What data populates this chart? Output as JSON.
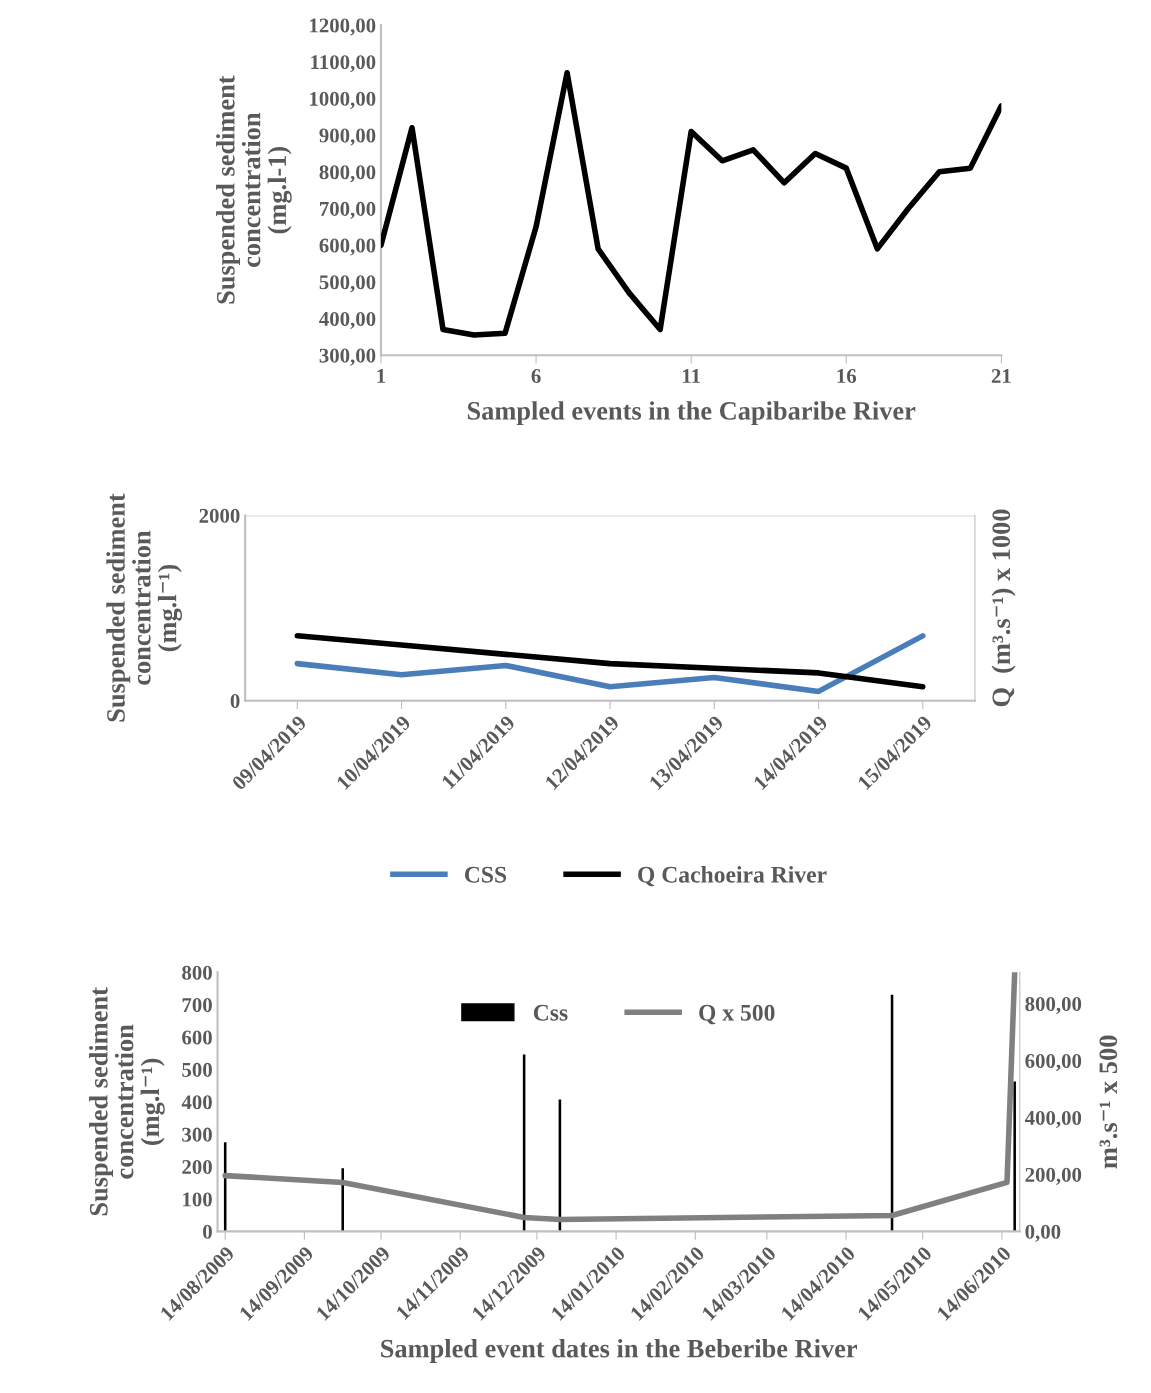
{
  "chart_data": [
    {
      "type": "line",
      "xlabel": "Sampled events in the Capibaribe River",
      "ylabel": "Suspended sediment\nconcentration\n(mg.l-1)",
      "x": [
        1,
        2,
        3,
        4,
        5,
        6,
        7,
        8,
        9,
        10,
        11,
        12,
        13,
        14,
        15,
        16,
        17,
        18,
        19,
        20,
        21
      ],
      "series": [
        {
          "color": "#000000",
          "values": [
            600,
            920,
            370,
            355,
            360,
            650,
            1070,
            590,
            470,
            370,
            910,
            830,
            860,
            770,
            850,
            810,
            590,
            700,
            800,
            810,
            980
          ]
        }
      ],
      "xlim": [
        1,
        21
      ],
      "xticks": [
        1,
        6,
        11,
        16,
        21
      ],
      "ylim": [
        300,
        1200
      ],
      "yticks": [
        {
          "value": 300,
          "label": "300,00"
        },
        {
          "value": 400,
          "label": "400,00"
        },
        {
          "value": 500,
          "label": "500,00"
        },
        {
          "value": 600,
          "label": "600,00"
        },
        {
          "value": 700,
          "label": "700,00"
        },
        {
          "value": 800,
          "label": "800,00"
        },
        {
          "value": 900,
          "label": "900,00"
        },
        {
          "value": 1000,
          "label": "1000,00"
        },
        {
          "value": 1100,
          "label": "1100,00"
        },
        {
          "value": 1200,
          "label": "1200,00"
        }
      ],
      "line_style": "solid",
      "marker": "none"
    },
    {
      "type": "line",
      "ylabel": "Suspended sediment\nconcentration\n(mg.l⁻¹)",
      "y2label": "Q  (m³.s⁻¹) x 1000",
      "categories": [
        "09/04/2019",
        "10/04/2019",
        "11/04/2019",
        "12/04/2019",
        "13/04/2019",
        "14/04/2019",
        "15/04/2019"
      ],
      "series": [
        {
          "name": "CSS",
          "color": "#4a7ebb",
          "values": [
            400,
            280,
            380,
            150,
            250,
            100,
            700
          ]
        },
        {
          "name": "Q Cachoeira River",
          "color": "#000000",
          "values": [
            700,
            600,
            500,
            400,
            350,
            300,
            150
          ]
        }
      ],
      "ylim": [
        0,
        2000
      ],
      "yticks": [
        0,
        2000
      ],
      "grid": "y",
      "legend": "bottom",
      "line_style": "solid",
      "marker": "none"
    },
    {
      "type": "line",
      "xlabel": "Sampled event dates in the Beberibe River",
      "ylabel": "Suspended sediment\nconcentration\n(mg.l⁻¹)",
      "y2label": "m³.s⁻¹ x 500",
      "series": [
        {
          "name": "Css",
          "type": "bar",
          "color": "#000000",
          "x": [
            "2009-08-14",
            "2009-09-29",
            "2009-12-09",
            "2009-12-23",
            "2010-05-02",
            "2010-06-16",
            "2010-06-19"
          ],
          "values": [
            275,
            195,
            546,
            407,
            731,
            null,
            463
          ]
        },
        {
          "name": "Q x 500",
          "type": "line",
          "axis": "y2",
          "color": "#808080",
          "x": [
            "2009-08-14",
            "2009-09-29",
            "2009-12-09",
            "2009-12-23",
            "2010-05-02",
            "2010-06-16",
            "2010-06-19"
          ],
          "values": [
            196,
            172,
            49,
            42,
            56,
            172,
            910
          ]
        }
      ],
      "xlim": [
        "2009-08-11",
        "2010-06-21"
      ],
      "xticks": [
        {
          "value": "2009-08-14",
          "label": "14/08/2009"
        },
        {
          "value": "2009-09-14",
          "label": "14/09/2009"
        },
        {
          "value": "2009-10-14",
          "label": "14/10/2009"
        },
        {
          "value": "2009-11-14",
          "label": "14/11/2009"
        },
        {
          "value": "2009-12-14",
          "label": "14/12/2009"
        },
        {
          "value": "2010-01-14",
          "label": "14/01/2010"
        },
        {
          "value": "2010-02-14",
          "label": "14/02/2010"
        },
        {
          "value": "2010-03-14",
          "label": "14/03/2010"
        },
        {
          "value": "2010-04-14",
          "label": "14/04/2010"
        },
        {
          "value": "2010-05-14",
          "label": "14/05/2010"
        },
        {
          "value": "2010-06-14",
          "label": "14/06/2010"
        }
      ],
      "ylim": [
        0,
        800
      ],
      "yticks": [
        0,
        100,
        200,
        300,
        400,
        500,
        600,
        700,
        800
      ],
      "y2lim": [
        0,
        910
      ],
      "y2ticks": [
        {
          "value": 0,
          "label": "0,00"
        },
        {
          "value": 200,
          "label": "200,00"
        },
        {
          "value": 400,
          "label": "400,00"
        },
        {
          "value": 600,
          "label": "600,00"
        },
        {
          "value": 800,
          "label": "800,00"
        }
      ],
      "legend": "top",
      "line_style": "solid",
      "marker": "none"
    }
  ]
}
